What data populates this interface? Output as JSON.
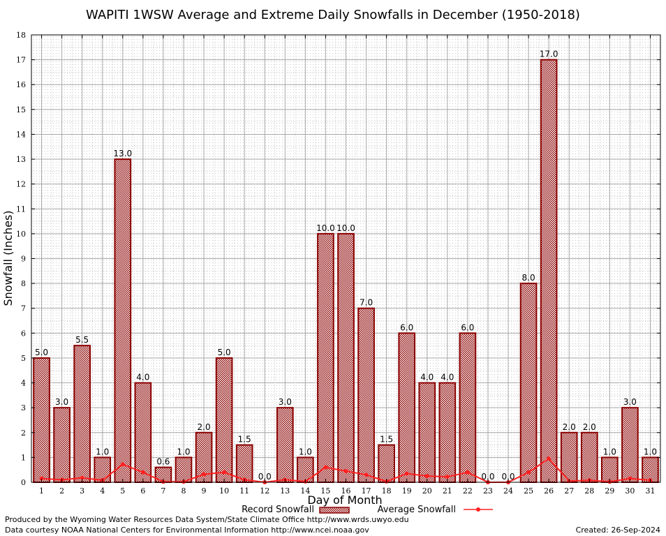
{
  "chart_data": {
    "type": "bar",
    "title": "WAPITI 1WSW Average and Extreme Daily Snowfalls in December (1950-2018)",
    "xlabel": "Day of Month",
    "ylabel": "Snowfall (Inches)",
    "ylim": [
      0,
      18
    ],
    "y_ticks": [
      "0",
      "1",
      "2",
      "3",
      "4",
      "5",
      "6",
      "7",
      "8",
      "9",
      "10",
      "11",
      "12",
      "13",
      "14",
      "15",
      "16",
      "17",
      "18"
    ],
    "grid": true,
    "legend_position": "bottom-center",
    "categories": [
      "1",
      "2",
      "3",
      "4",
      "5",
      "6",
      "7",
      "8",
      "9",
      "10",
      "11",
      "12",
      "13",
      "14",
      "15",
      "16",
      "17",
      "18",
      "19",
      "20",
      "21",
      "22",
      "23",
      "24",
      "25",
      "26",
      "27",
      "28",
      "29",
      "30",
      "31"
    ],
    "series": [
      {
        "name": "Record Snowfall",
        "kind": "bar",
        "color": "#8b0000",
        "values": [
          5.0,
          3.0,
          5.5,
          1.0,
          13.0,
          4.0,
          0.6,
          1.0,
          2.0,
          5.0,
          1.5,
          0.0,
          3.0,
          1.0,
          10.0,
          10.0,
          7.0,
          1.5,
          6.0,
          4.0,
          4.0,
          6.0,
          0.0,
          0.0,
          8.0,
          17.0,
          2.0,
          2.0,
          1.0,
          3.0,
          1.0
        ],
        "labels": [
          "5.0",
          "3.0",
          "5.5",
          "1.0",
          "13.0",
          "4.0",
          "0.6",
          "1.0",
          "2.0",
          "5.0",
          "1.5",
          "0.0",
          "3.0",
          "1.0",
          "10.0",
          "10.0",
          "7.0",
          "1.5",
          "6.0",
          "4.0",
          "4.0",
          "6.0",
          "0.0",
          "0.0",
          "8.0",
          "17.0",
          "2.0",
          "2.0",
          "1.0",
          "3.0",
          "1.0"
        ]
      },
      {
        "name": "Average Snowfall",
        "kind": "line",
        "color": "#ff2020",
        "values": [
          0.15,
          0.1,
          0.18,
          0.08,
          0.72,
          0.4,
          0.02,
          0.02,
          0.32,
          0.4,
          0.1,
          0.0,
          0.1,
          0.03,
          0.6,
          0.45,
          0.3,
          0.03,
          0.35,
          0.25,
          0.22,
          0.4,
          0.0,
          0.0,
          0.4,
          0.95,
          0.05,
          0.08,
          0.02,
          0.15,
          0.08
        ]
      }
    ]
  },
  "footer": {
    "credit_line1": "Produced by the Wyoming Water Resources Data System/State Climate Office http://www.wrds.uwyo.edu",
    "credit_line2": "Data courtesy NOAA National Centers for Environmental Information http://www.ncei.noaa.gov",
    "created": "Created:  26-Sep-2024"
  }
}
